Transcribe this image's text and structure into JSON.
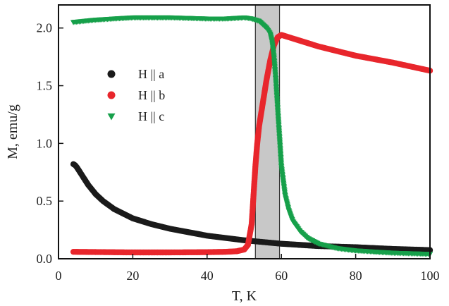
{
  "chart_data": {
    "type": "scatter",
    "title": "",
    "xlabel": "T, K",
    "ylabel": "M, emu/g",
    "xlim": [
      0,
      100
    ],
    "ylim": [
      0.0,
      2.2
    ],
    "x_ticks": [
      0,
      20,
      40,
      60,
      80,
      100
    ],
    "x_tick_labels": [
      "0",
      "20",
      "40",
      "60",
      "80",
      "100"
    ],
    "y_ticks": [
      0.0,
      0.5,
      1.0,
      1.5,
      2.0
    ],
    "y_tick_labels": [
      "0.0",
      "0.5",
      "1.0",
      "1.5",
      "2.0"
    ],
    "grid": false,
    "legend_position": "left-center",
    "shaded_band": {
      "x_start": 53,
      "x_end": 59.5,
      "color": "#c8c8c8"
    },
    "series": [
      {
        "name": "H || a",
        "marker": "circle",
        "color": "#1a1a1a",
        "x": [
          4,
          4.5,
          5,
          6,
          7,
          8,
          10,
          12,
          15,
          20,
          25,
          30,
          35,
          40,
          45,
          50,
          55,
          60,
          65,
          70,
          80,
          90,
          100
        ],
        "y": [
          0.82,
          0.81,
          0.79,
          0.74,
          0.69,
          0.64,
          0.56,
          0.5,
          0.43,
          0.35,
          0.3,
          0.26,
          0.23,
          0.2,
          0.18,
          0.16,
          0.145,
          0.13,
          0.12,
          0.11,
          0.1,
          0.085,
          0.075
        ]
      },
      {
        "name": "H || b",
        "marker": "circle",
        "color": "#e8262c",
        "x": [
          4,
          10,
          20,
          30,
          40,
          45,
          48,
          50,
          51,
          52,
          52.5,
          53,
          53.5,
          54,
          55,
          56,
          57,
          58,
          59,
          60,
          62,
          65,
          70,
          80,
          90,
          100
        ],
        "y": [
          0.06,
          0.058,
          0.055,
          0.055,
          0.057,
          0.06,
          0.065,
          0.08,
          0.12,
          0.3,
          0.55,
          0.8,
          1.0,
          1.15,
          1.35,
          1.55,
          1.72,
          1.85,
          1.92,
          1.94,
          1.92,
          1.89,
          1.84,
          1.76,
          1.7,
          1.63
        ]
      },
      {
        "name": "H || c",
        "marker": "triangle-down",
        "color": "#16a04a",
        "x": [
          4,
          10,
          20,
          30,
          40,
          45,
          50,
          52,
          54,
          55,
          56,
          57,
          57.5,
          58,
          58.5,
          59,
          59.5,
          60,
          61,
          62,
          63,
          65,
          67,
          70,
          75,
          80,
          90,
          100
        ],
        "y": [
          2.05,
          2.07,
          2.09,
          2.09,
          2.08,
          2.08,
          2.09,
          2.08,
          2.06,
          2.03,
          2.0,
          1.95,
          1.88,
          1.75,
          1.55,
          1.3,
          1.05,
          0.8,
          0.55,
          0.42,
          0.33,
          0.24,
          0.18,
          0.13,
          0.09,
          0.07,
          0.05,
          0.04
        ]
      }
    ]
  }
}
